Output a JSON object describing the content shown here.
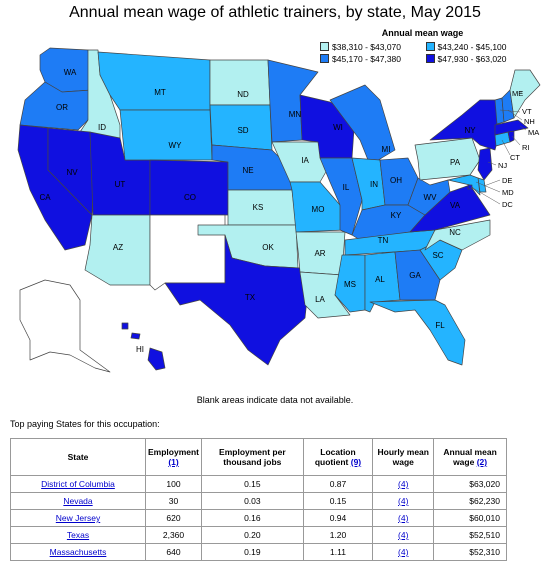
{
  "title": "Annual mean wage of athletic trainers, by state, May 2015",
  "legend": {
    "title": "Annual mean wage",
    "ranges": [
      {
        "label": "$38,310 - $43,070",
        "color": "#b2f0f0"
      },
      {
        "label": "$43,240 - $45,100",
        "color": "#24b4ff"
      },
      {
        "label": "$45,170 - $47,380",
        "color": "#1e7cf5"
      },
      {
        "label": "$47,930 - $63,020",
        "color": "#1010e0"
      }
    ]
  },
  "blank_note": "Blank areas indicate data not available.",
  "top_paying_label": "Top paying States for this occupation:",
  "table": {
    "headers": [
      "State",
      "Employment",
      "Employment per thousand jobs",
      "Location quotient",
      "Hourly mean wage",
      "Annual mean wage"
    ],
    "header_refs": [
      "",
      "(1)",
      "",
      "(9)",
      "",
      "(2)"
    ],
    "rows": [
      {
        "state": "District of Columbia",
        "employment": "100",
        "per_thousand": "0.15",
        "lq": "0.87",
        "hourly": "(4)",
        "annual": "$63,020"
      },
      {
        "state": "Nevada",
        "employment": "30",
        "per_thousand": "0.03",
        "lq": "0.15",
        "hourly": "(4)",
        "annual": "$62,230"
      },
      {
        "state": "New Jersey",
        "employment": "620",
        "per_thousand": "0.16",
        "lq": "0.94",
        "hourly": "(4)",
        "annual": "$60,010"
      },
      {
        "state": "Texas",
        "employment": "2,360",
        "per_thousand": "0.20",
        "lq": "1.20",
        "hourly": "(4)",
        "annual": "$52,510"
      },
      {
        "state": "Massachusetts",
        "employment": "640",
        "per_thousand": "0.19",
        "lq": "1.11",
        "hourly": "(4)",
        "annual": "$52,310"
      }
    ]
  },
  "states": {
    "WA": {
      "label": "WA",
      "color": "#1e7cf5"
    },
    "OR": {
      "label": "OR",
      "color": "#1e7cf5"
    },
    "CA": {
      "label": "CA",
      "color": "#1010e0"
    },
    "ID": {
      "label": "ID",
      "color": "#b2f0f0"
    },
    "NV": {
      "label": "NV",
      "color": "#1010e0"
    },
    "UT": {
      "label": "UT",
      "color": "#1010e0"
    },
    "AZ": {
      "label": "AZ",
      "color": "#b2f0f0"
    },
    "MT": {
      "label": "MT",
      "color": "#24b4ff"
    },
    "WY": {
      "label": "WY",
      "color": "#24b4ff"
    },
    "CO": {
      "label": "CO",
      "color": "#1010e0"
    },
    "NM": {
      "label": "",
      "color": "#ffffff"
    },
    "ND": {
      "label": "ND",
      "color": "#b2f0f0"
    },
    "SD": {
      "label": "SD",
      "color": "#24b4ff"
    },
    "NE": {
      "label": "NE",
      "color": "#1e7cf5"
    },
    "KS": {
      "label": "KS",
      "color": "#b2f0f0"
    },
    "OK": {
      "label": "OK",
      "color": "#b2f0f0"
    },
    "TX": {
      "label": "TX",
      "color": "#1010e0"
    },
    "MN": {
      "label": "MN",
      "color": "#1e7cf5"
    },
    "IA": {
      "label": "IA",
      "color": "#b2f0f0"
    },
    "MO": {
      "label": "MO",
      "color": "#24b4ff"
    },
    "AR": {
      "label": "AR",
      "color": "#b2f0f0"
    },
    "LA": {
      "label": "LA",
      "color": "#b2f0f0"
    },
    "WI": {
      "label": "WI",
      "color": "#1010e0"
    },
    "IL": {
      "label": "IL",
      "color": "#1e7cf5"
    },
    "MI": {
      "label": "MI",
      "color": "#1e7cf5"
    },
    "IN": {
      "label": "IN",
      "color": "#24b4ff"
    },
    "OH": {
      "label": "OH",
      "color": "#1e7cf5"
    },
    "KY": {
      "label": "KY",
      "color": "#1e7cf5"
    },
    "TN": {
      "label": "TN",
      "color": "#24b4ff"
    },
    "MS": {
      "label": "MS",
      "color": "#24b4ff"
    },
    "AL": {
      "label": "AL",
      "color": "#24b4ff"
    },
    "GA": {
      "label": "GA",
      "color": "#1e7cf5"
    },
    "FL": {
      "label": "FL",
      "color": "#24b4ff"
    },
    "SC": {
      "label": "SC",
      "color": "#24b4ff"
    },
    "NC": {
      "label": "NC",
      "color": "#b2f0f0"
    },
    "VA": {
      "label": "VA",
      "color": "#1010e0"
    },
    "WV": {
      "label": "WV",
      "color": "#1e7cf5"
    },
    "PA": {
      "label": "PA",
      "color": "#b2f0f0"
    },
    "NY": {
      "label": "NY",
      "color": "#1010e0"
    },
    "NJ": {
      "label": "NJ",
      "color": "#1010e0"
    },
    "DE": {
      "label": "DE",
      "color": "#24b4ff"
    },
    "MD": {
      "label": "MD",
      "color": "#24b4ff"
    },
    "DC": {
      "label": "DC",
      "color": "#1010e0"
    },
    "CT": {
      "label": "CT",
      "color": "#24b4ff"
    },
    "RI": {
      "label": "RI",
      "color": "#1010e0"
    },
    "MA": {
      "label": "MA",
      "color": "#1010e0"
    },
    "VT": {
      "label": "VT",
      "color": "#1e7cf5"
    },
    "NH": {
      "label": "NH",
      "color": "#1e7cf5"
    },
    "ME": {
      "label": "ME",
      "color": "#b2f0f0"
    },
    "AK": {
      "label": "",
      "color": "#ffffff"
    },
    "HI": {
      "label": "HI",
      "color": "#1010e0"
    }
  }
}
